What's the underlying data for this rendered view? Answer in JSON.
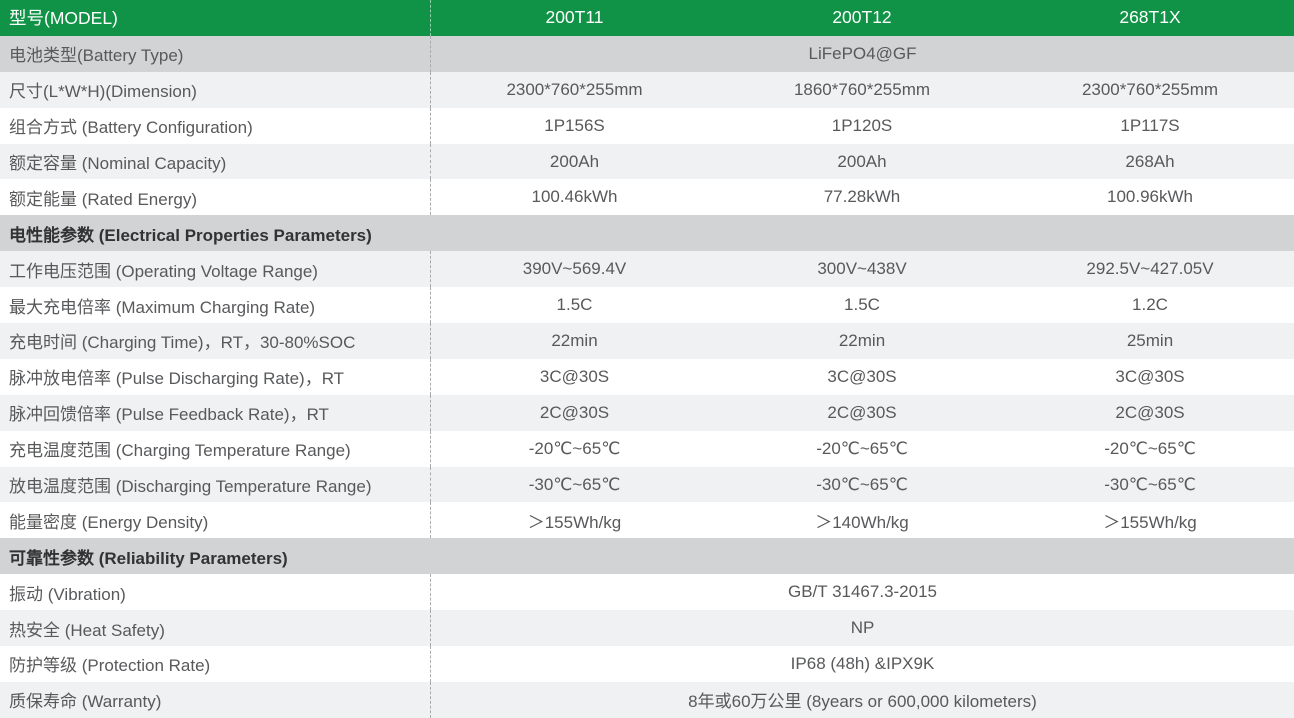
{
  "theme": {
    "header_green": "#119347",
    "section_row_bg": "#d2d3d5",
    "alt_row_bg": "#f0f1f2",
    "white_row_bg": "#ffffff",
    "header_text_color": "#ffffff",
    "body_text_color": "#58595b",
    "section_text_color": "#303234",
    "divider_dash_color": "#a8aaad"
  },
  "table": {
    "header": {
      "label": "型号(MODEL)",
      "models": [
        "200T11",
        "200T12",
        "268T1X"
      ]
    },
    "rows": [
      {
        "kind": "data",
        "bg": "dark",
        "label": "电池类型(Battery Type)",
        "values": [
          "LiFePO4@GF"
        ]
      },
      {
        "kind": "data",
        "bg": "alt",
        "label": "尺寸(L*W*H)(Dimension)",
        "values": [
          "2300*760*255mm",
          "1860*760*255mm",
          "2300*760*255mm"
        ]
      },
      {
        "kind": "data",
        "bg": "white",
        "label": "组合方式 (Battery Configuration)",
        "values": [
          "1P156S",
          "1P120S",
          "1P117S"
        ]
      },
      {
        "kind": "data",
        "bg": "alt",
        "label": "额定容量 (Nominal Capacity)",
        "values": [
          "200Ah",
          "200Ah",
          "268Ah"
        ]
      },
      {
        "kind": "data",
        "bg": "white",
        "label": "额定能量 (Rated Energy)",
        "values": [
          "100.46kWh",
          "77.28kWh",
          "100.96kWh"
        ]
      },
      {
        "kind": "section",
        "bg": "dark",
        "label": "电性能参数 (Electrical Properties Parameters)"
      },
      {
        "kind": "data",
        "bg": "alt",
        "label": "工作电压范围 (Operating Voltage Range)",
        "values": [
          "390V~569.4V",
          "300V~438V",
          "292.5V~427.05V"
        ]
      },
      {
        "kind": "data",
        "bg": "white",
        "label": "最大充电倍率 (Maximum Charging Rate)",
        "values": [
          "1.5C",
          "1.5C",
          "1.2C"
        ]
      },
      {
        "kind": "data",
        "bg": "alt",
        "label": "充电时间 (Charging Time)，RT，30-80%SOC",
        "values": [
          "22min",
          "22min",
          "25min"
        ]
      },
      {
        "kind": "data",
        "bg": "white",
        "label": "脉冲放电倍率 (Pulse Discharging Rate)，RT",
        "values": [
          "3C@30S",
          "3C@30S",
          "3C@30S"
        ]
      },
      {
        "kind": "data",
        "bg": "alt",
        "label": "脉冲回馈倍率 (Pulse Feedback Rate)，RT",
        "values": [
          "2C@30S",
          "2C@30S",
          "2C@30S"
        ]
      },
      {
        "kind": "data",
        "bg": "white",
        "label": "充电温度范围 (Charging Temperature Range)",
        "values": [
          "-20℃~65℃",
          "-20℃~65℃",
          "-20℃~65℃"
        ]
      },
      {
        "kind": "data",
        "bg": "alt",
        "label": "放电温度范围 (Discharging Temperature Range)",
        "values": [
          "-30℃~65℃",
          "-30℃~65℃",
          "-30℃~65℃"
        ]
      },
      {
        "kind": "data",
        "bg": "white",
        "label": "能量密度 (Energy Density)",
        "values": [
          "＞155Wh/kg",
          "＞140Wh/kg",
          "＞155Wh/kg"
        ]
      },
      {
        "kind": "section",
        "bg": "dark",
        "label": "可靠性参数 (Reliability Parameters)"
      },
      {
        "kind": "data",
        "bg": "white",
        "label": "振动 (Vibration)",
        "values": [
          "GB/T 31467.3-2015"
        ]
      },
      {
        "kind": "data",
        "bg": "alt",
        "label": "热安全 (Heat Safety)",
        "values": [
          "NP"
        ]
      },
      {
        "kind": "data",
        "bg": "white",
        "label": "防护等级 (Protection Rate)",
        "values": [
          "IP68 (48h) &IPX9K"
        ]
      },
      {
        "kind": "data",
        "bg": "alt",
        "label": "质保寿命 (Warranty)",
        "values": [
          "8年或60万公里 (8years or 600,000 kilometers)"
        ]
      }
    ]
  }
}
